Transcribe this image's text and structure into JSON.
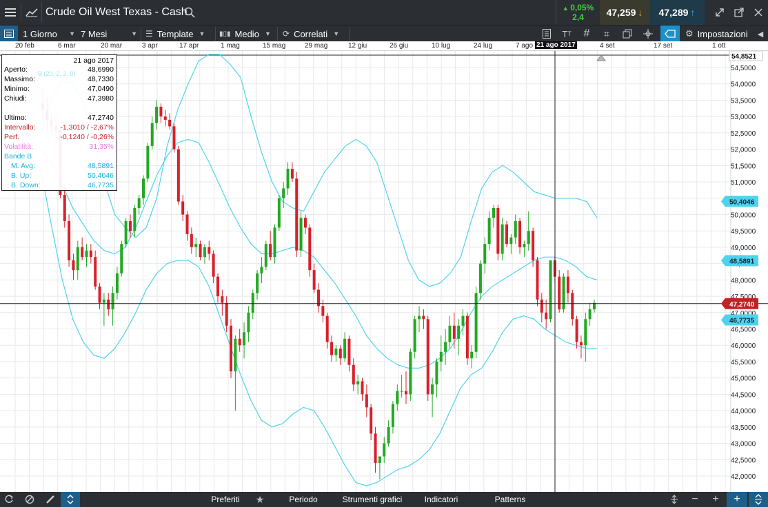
{
  "header": {
    "title": "Crude Oil West Texas - Cash",
    "change_pct": "0,05%",
    "change_abs": "2,4",
    "bid": "47,259",
    "ask": "47,289"
  },
  "toolbar": {
    "period": "1 Giorno",
    "range": "7 Mesi",
    "template": "Template",
    "average": "Medio",
    "related": "Correlati",
    "settings": "Impostazioni"
  },
  "dates": [
    "20 feb",
    "6 mar",
    "20 mar",
    "3 apr",
    "17 apr",
    "1 mag",
    "15 mag",
    "29 mag",
    "12 giu",
    "26 giu",
    "10 lug",
    "24 lug",
    "7 ago",
    "21 ago 2017",
    "4 set",
    "17 set",
    "1 ott"
  ],
  "info": {
    "date": "21 ago 2017",
    "rows": [
      {
        "label": "Aperto:",
        "value": "48,6990"
      },
      {
        "label": "Massimo:",
        "value": "48,7330"
      },
      {
        "label": "Minimo:",
        "value": "47,0490"
      },
      {
        "label": "Chiudi:",
        "value": "47,3980"
      },
      {
        "label": "Ultimo:",
        "value": "47,2740"
      },
      {
        "label": "Intervallo:",
        "value": "-1,3010 / -2,67%"
      },
      {
        "label": "Perf.",
        "value": "-0,1240 / -0,26%"
      },
      {
        "label": "Volatilità:",
        "value": "31,35%"
      },
      {
        "label": "Bande B",
        "value": ""
      },
      {
        "label": "M. Avg:",
        "value": "48,5891"
      },
      {
        "label": "B. Up:",
        "value": "50,4046"
      },
      {
        "label": "B. Down:",
        "value": "46,7735"
      }
    ],
    "legend_hint": "B (20, 2, 2, 0)"
  },
  "price_axis": {
    "top_tag": "54,8521",
    "ticks": [
      "54,5000",
      "54,0000",
      "53,5000",
      "53,0000",
      "52,5000",
      "52,0000",
      "51,5000",
      "51,0000",
      "50,5000",
      "50,0000",
      "49,5000",
      "49,0000",
      "48,5000",
      "48,0000",
      "47,5000",
      "47,0000",
      "46,5000",
      "46,0000",
      "45,5000",
      "45,0000",
      "44,5000",
      "44,0000",
      "43,5000",
      "43,0000",
      "42,5000",
      "42,0000"
    ],
    "tag_bup": "50,4046",
    "tag_mavg": "48,5891",
    "tag_last": "47,2740",
    "tag_bdown": "46,7735"
  },
  "bottom": {
    "favorites": "Preferiti",
    "period": "Periodo",
    "tools": "Strumenti grafici",
    "indicators": "Indicatori",
    "patterns": "Patterns"
  },
  "colors": {
    "up": "#22a822",
    "down": "#d8202a",
    "band": "#4fd2ee",
    "accent": "#1e90c8"
  },
  "chart_data": {
    "type": "candlestick",
    "title": "Crude Oil West Texas - Cash",
    "ylim": [
      41.8,
      55.0
    ],
    "last": 47.274,
    "series_candles": [
      [
        53.4,
        53.9,
        52.9,
        53.2
      ],
      [
        53.2,
        53.6,
        52.6,
        52.9
      ],
      [
        52.9,
        53.1,
        52.5,
        52.7
      ],
      [
        52.7,
        53.0,
        52.3,
        52.6
      ],
      [
        52.6,
        52.7,
        50.5,
        50.6
      ],
      [
        50.6,
        50.9,
        49.6,
        49.8
      ],
      [
        49.8,
        50.0,
        48.4,
        48.6
      ],
      [
        48.6,
        48.8,
        48.0,
        48.3
      ],
      [
        48.3,
        49.2,
        48.0,
        49.0
      ],
      [
        49.0,
        49.3,
        48.6,
        48.7
      ],
      [
        48.7,
        49.1,
        48.4,
        48.9
      ],
      [
        48.9,
        49.1,
        48.5,
        48.7
      ],
      [
        48.7,
        48.9,
        47.7,
        47.8
      ],
      [
        47.8,
        47.9,
        47.1,
        47.3
      ],
      [
        47.3,
        47.6,
        46.6,
        47.4
      ],
      [
        47.4,
        47.6,
        46.9,
        47.1
      ],
      [
        47.1,
        47.8,
        46.6,
        47.6
      ],
      [
        47.6,
        48.4,
        47.4,
        48.2
      ],
      [
        48.2,
        49.2,
        48.1,
        49.1
      ],
      [
        49.1,
        49.9,
        49.0,
        49.8
      ],
      [
        49.8,
        50.0,
        49.3,
        49.5
      ],
      [
        49.5,
        50.3,
        49.3,
        50.2
      ],
      [
        50.2,
        50.6,
        50.0,
        50.5
      ],
      [
        50.5,
        51.2,
        50.3,
        51.1
      ],
      [
        51.1,
        52.2,
        51.0,
        52.1
      ],
      [
        52.1,
        53.0,
        52.0,
        52.8
      ],
      [
        52.8,
        53.5,
        52.6,
        53.3
      ],
      [
        53.3,
        53.4,
        52.8,
        53.0
      ],
      [
        53.0,
        53.2,
        52.7,
        52.9
      ],
      [
        52.9,
        53.1,
        52.6,
        52.7
      ],
      [
        52.7,
        52.8,
        51.9,
        52.0
      ],
      [
        52.0,
        52.1,
        50.3,
        50.4
      ],
      [
        50.4,
        50.6,
        49.8,
        50.0
      ],
      [
        50.0,
        50.1,
        49.2,
        49.4
      ],
      [
        49.4,
        49.6,
        48.8,
        49.0
      ],
      [
        49.0,
        49.3,
        48.7,
        49.1
      ],
      [
        49.1,
        49.2,
        48.6,
        48.7
      ],
      [
        48.7,
        49.1,
        48.5,
        49.0
      ],
      [
        49.0,
        49.2,
        48.6,
        48.8
      ],
      [
        48.8,
        48.9,
        47.9,
        48.1
      ],
      [
        48.1,
        48.2,
        47.3,
        47.5
      ],
      [
        47.5,
        47.7,
        46.9,
        47.3
      ],
      [
        47.3,
        47.5,
        46.4,
        46.6
      ],
      [
        46.6,
        46.8,
        45.0,
        45.2
      ],
      [
        45.2,
        46.3,
        44.0,
        46.2
      ],
      [
        46.2,
        46.5,
        45.8,
        46.0
      ],
      [
        46.0,
        46.7,
        45.6,
        46.4
      ],
      [
        46.4,
        47.2,
        46.1,
        47.0
      ],
      [
        47.0,
        47.7,
        46.8,
        47.6
      ],
      [
        47.6,
        48.3,
        47.4,
        48.2
      ],
      [
        48.2,
        48.7,
        47.9,
        48.4
      ],
      [
        48.4,
        49.2,
        48.3,
        49.1
      ],
      [
        49.1,
        49.5,
        48.6,
        48.7
      ],
      [
        48.7,
        49.7,
        48.5,
        49.6
      ],
      [
        49.6,
        50.6,
        49.5,
        50.5
      ],
      [
        50.5,
        51.0,
        50.2,
        50.8
      ],
      [
        50.8,
        51.6,
        50.6,
        51.4
      ],
      [
        51.4,
        51.6,
        51.0,
        51.1
      ],
      [
        51.1,
        51.3,
        48.7,
        48.9
      ],
      [
        48.9,
        50.1,
        48.7,
        49.9
      ],
      [
        49.9,
        50.0,
        49.4,
        49.6
      ],
      [
        49.6,
        49.7,
        48.1,
        48.3
      ],
      [
        48.3,
        48.5,
        47.6,
        47.7
      ],
      [
        47.7,
        47.9,
        47.0,
        47.2
      ],
      [
        47.2,
        47.4,
        46.7,
        46.9
      ],
      [
        46.9,
        47.0,
        45.9,
        46.1
      ],
      [
        46.1,
        46.3,
        45.5,
        45.7
      ],
      [
        45.7,
        46.0,
        45.5,
        45.9
      ],
      [
        45.9,
        46.0,
        45.4,
        45.6
      ],
      [
        45.6,
        46.4,
        45.5,
        46.2
      ],
      [
        46.2,
        46.3,
        45.2,
        45.4
      ],
      [
        45.4,
        45.6,
        44.6,
        44.8
      ],
      [
        44.8,
        45.1,
        44.5,
        44.9
      ],
      [
        44.9,
        45.0,
        44.3,
        44.5
      ],
      [
        44.5,
        44.8,
        43.8,
        44.1
      ],
      [
        44.1,
        44.2,
        43.1,
        43.3
      ],
      [
        43.3,
        43.5,
        42.1,
        42.4
      ],
      [
        42.4,
        42.6,
        41.9,
        42.6
      ],
      [
        42.6,
        43.2,
        42.4,
        43.0
      ],
      [
        43.0,
        43.7,
        42.9,
        43.5
      ],
      [
        43.5,
        44.3,
        43.3,
        44.2
      ],
      [
        44.2,
        44.8,
        44.0,
        44.6
      ],
      [
        44.6,
        45.1,
        44.4,
        44.6
      ],
      [
        44.6,
        45.2,
        44.2,
        44.5
      ],
      [
        44.5,
        45.9,
        44.3,
        45.8
      ],
      [
        45.8,
        46.9,
        45.6,
        46.8
      ],
      [
        46.8,
        47.2,
        46.4,
        46.9
      ],
      [
        46.9,
        47.1,
        46.5,
        46.8
      ],
      [
        46.8,
        46.9,
        44.3,
        44.5
      ],
      [
        44.5,
        45.0,
        43.8,
        44.8
      ],
      [
        44.8,
        45.6,
        44.4,
        45.5
      ],
      [
        45.5,
        46.3,
        45.2,
        45.8
      ],
      [
        45.8,
        46.5,
        45.4,
        46.1
      ],
      [
        46.1,
        46.9,
        45.9,
        46.6
      ],
      [
        46.6,
        47.0,
        45.9,
        46.2
      ],
      [
        46.2,
        46.8,
        45.7,
        46.6
      ],
      [
        46.6,
        47.1,
        46.3,
        46.9
      ],
      [
        46.9,
        47.0,
        45.4,
        45.6
      ],
      [
        45.6,
        46.0,
        45.3,
        45.8
      ],
      [
        45.8,
        47.8,
        45.6,
        47.6
      ],
      [
        47.6,
        48.6,
        47.4,
        48.5
      ],
      [
        48.5,
        49.3,
        48.2,
        49.1
      ],
      [
        49.1,
        50.1,
        48.9,
        49.9
      ],
      [
        49.9,
        50.3,
        49.6,
        50.2
      ],
      [
        50.2,
        50.3,
        48.6,
        48.8
      ],
      [
        48.8,
        49.9,
        48.6,
        49.7
      ],
      [
        49.7,
        49.8,
        49.0,
        49.1
      ],
      [
        49.1,
        49.4,
        48.8,
        49.3
      ],
      [
        49.3,
        50.0,
        49.1,
        49.8
      ],
      [
        49.8,
        49.9,
        48.8,
        49.0
      ],
      [
        49.0,
        49.2,
        48.7,
        49.1
      ],
      [
        49.1,
        50.1,
        48.9,
        49.5
      ],
      [
        49.5,
        49.6,
        48.4,
        48.6
      ],
      [
        48.6,
        48.7,
        47.2,
        47.4
      ],
      [
        47.4,
        47.6,
        46.7,
        47.0
      ],
      [
        47.0,
        47.4,
        46.5,
        46.8
      ],
      [
        46.8,
        48.6,
        46.7,
        48.6
      ],
      [
        48.6,
        48.7,
        47.9,
        48.1
      ],
      [
        48.1,
        48.3,
        47.0,
        47.1
      ],
      [
        47.1,
        48.2,
        47.0,
        48.1
      ],
      [
        48.1,
        48.3,
        47.3,
        47.6
      ],
      [
        47.6,
        47.7,
        46.6,
        46.8
      ],
      [
        46.8,
        46.9,
        45.9,
        46.1
      ],
      [
        46.1,
        46.3,
        45.6,
        46.0
      ],
      [
        46.0,
        47.0,
        45.5,
        46.8
      ],
      [
        46.8,
        47.3,
        46.6,
        47.1
      ],
      [
        47.1,
        47.4,
        47.0,
        47.3
      ]
    ],
    "bands": {
      "up": [
        52.5,
        53.6,
        54.1,
        54.0,
        53.4,
        52.4,
        51.0,
        50.0,
        49.6,
        49.3,
        49.6,
        50.5,
        52.1,
        53.2,
        54.0,
        54.7,
        54.9,
        54.9,
        54.6,
        54.2,
        53.0,
        51.9,
        51.0,
        50.4,
        50.2,
        50.1,
        50.7,
        51.3,
        51.7,
        52.1,
        52.3,
        52.1,
        51.6,
        50.6,
        49.6,
        48.6,
        48.0,
        47.8,
        47.9,
        48.2,
        48.7,
        49.8,
        50.8,
        51.3,
        51.5,
        51.3,
        51.0,
        50.7,
        50.6,
        50.5,
        50.5,
        50.5,
        50.4,
        49.9
      ],
      "mid": [
        52.0,
        51.6,
        50.9,
        50.2,
        49.7,
        49.2,
        48.9,
        48.8,
        49.0,
        49.6,
        50.4,
        51.2,
        51.8,
        52.2,
        52.3,
        52.2,
        51.6,
        50.9,
        50.2,
        49.6,
        49.1,
        48.8,
        48.8,
        48.9,
        49.0,
        48.9,
        48.7,
        48.3,
        47.9,
        47.4,
        46.9,
        46.3,
        45.9,
        45.6,
        45.4,
        45.3,
        45.3,
        45.4,
        45.6,
        45.9,
        46.4,
        47.0,
        47.5,
        47.8,
        48.0,
        48.2,
        48.4,
        48.6,
        48.7,
        48.7,
        48.6,
        48.4,
        48.1,
        48.0
      ],
      "down": [
        51.3,
        49.6,
        48.0,
        46.8,
        46.1,
        45.7,
        45.6,
        45.9,
        46.4,
        47.0,
        47.7,
        48.2,
        48.5,
        48.6,
        48.6,
        48.4,
        47.8,
        46.9,
        46.0,
        45.1,
        44.3,
        43.7,
        43.5,
        43.6,
        43.9,
        44.1,
        44.0,
        43.5,
        42.9,
        42.3,
        41.8,
        41.7,
        41.8,
        42.0,
        42.2,
        42.3,
        42.5,
        42.8,
        43.3,
        44.0,
        44.7,
        45.1,
        45.3,
        45.8,
        46.4,
        46.8,
        46.9,
        46.8,
        46.5,
        46.3,
        46.1,
        46.0,
        45.9,
        45.9
      ]
    }
  }
}
